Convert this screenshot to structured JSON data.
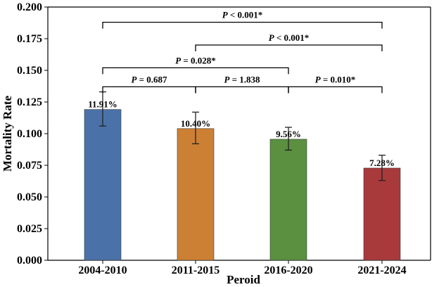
{
  "chart_data": {
    "type": "bar",
    "categories": [
      "2004-2010",
      "2011-2015",
      "2016-2020",
      "2021-2024"
    ],
    "values": [
      0.1191,
      0.104,
      0.0956,
      0.0728
    ],
    "value_labels": [
      "11.91%",
      "10.40%",
      "9.56%",
      "7.28%"
    ],
    "error_bars": [
      {
        "low": 0.106,
        "high": 0.133
      },
      {
        "low": 0.092,
        "high": 0.117
      },
      {
        "low": 0.087,
        "high": 0.105
      },
      {
        "low": 0.063,
        "high": 0.083
      }
    ],
    "colors": [
      "#4a72a8",
      "#cc8033",
      "#5a9040",
      "#a83a3c"
    ],
    "xlabel": "Peroid",
    "ylabel": "Mortality Rate",
    "ylim": [
      0,
      0.2
    ],
    "yticks": [
      0.0,
      0.025,
      0.05,
      0.075,
      0.1,
      0.125,
      0.15,
      0.175,
      0.2
    ],
    "ytick_labels": [
      "0.000",
      "0.025",
      "0.050",
      "0.075",
      "0.100",
      "0.125",
      "0.150",
      "0.175",
      "0.200"
    ],
    "grid": false,
    "legend": "none",
    "significance": [
      {
        "from": 0,
        "to": 1,
        "p_prefix": "P",
        "p_text": " = 0.687",
        "y": 0.137
      },
      {
        "from": 1,
        "to": 2,
        "p_prefix": "P",
        "p_text": " = 1.838",
        "y": 0.137
      },
      {
        "from": 2,
        "to": 3,
        "p_prefix": "P",
        "p_text": " = 0.010*",
        "y": 0.137
      },
      {
        "from": 0,
        "to": 2,
        "p_prefix": "P",
        "p_text": " = 0.028*",
        "y": 0.152
      },
      {
        "from": 1,
        "to": 3,
        "p_prefix": "P",
        "p_text": " < 0.001*",
        "y": 0.17
      },
      {
        "from": 0,
        "to": 3,
        "p_prefix": "P",
        "p_text": " < 0.001*",
        "y": 0.188
      }
    ]
  }
}
